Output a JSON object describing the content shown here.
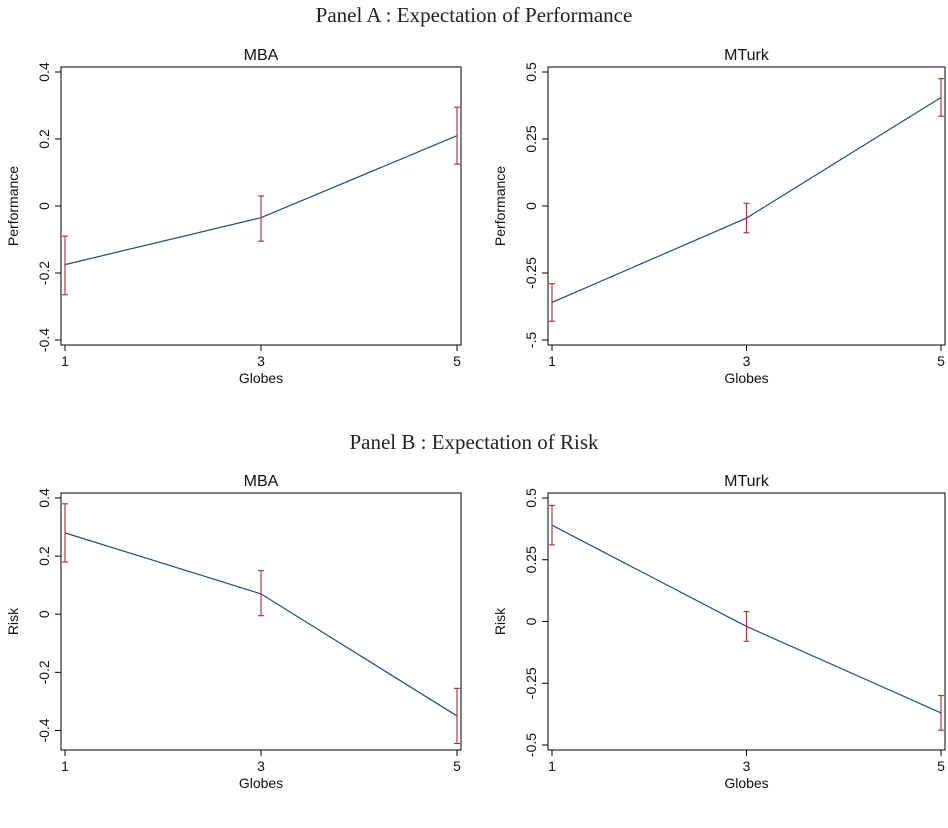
{
  "panels": [
    {
      "title": "Panel A : Expectation of Performance"
    },
    {
      "title": "Panel B : Expectation of Risk"
    }
  ],
  "colors": {
    "line": "#1f4e79",
    "error_bar": "#a03030",
    "axis": "#000000"
  },
  "chart_data": [
    {
      "type": "line",
      "title": "MBA",
      "xlabel": "Globes",
      "ylabel": "Performance",
      "x": [
        1,
        3,
        5
      ],
      "xticks": [
        "1",
        "3",
        "5"
      ],
      "xlim": [
        1,
        5
      ],
      "ylim": [
        -0.4,
        0.4
      ],
      "yticks": [
        -0.4,
        -0.2,
        0,
        0.2,
        0.4
      ],
      "ytick_labels": [
        "-0.4",
        "-0.2",
        "0",
        "0.2",
        "0.4"
      ],
      "values": [
        -0.175,
        -0.035,
        0.21
      ],
      "error_low": [
        -0.265,
        -0.105,
        0.125
      ],
      "error_high": [
        -0.09,
        0.03,
        0.295
      ],
      "grid": false
    },
    {
      "type": "line",
      "title": "MTurk",
      "xlabel": "Globes",
      "ylabel": "Performance",
      "x": [
        1,
        3,
        5
      ],
      "xticks": [
        "1",
        "3",
        "5"
      ],
      "xlim": [
        1,
        5
      ],
      "ylim": [
        -0.5,
        0.5
      ],
      "yticks": [
        -0.5,
        -0.25,
        0,
        0.25,
        0.5
      ],
      "ytick_labels": [
        "-.5",
        "-0.25",
        "0",
        "0.25",
        "0.5"
      ],
      "values": [
        -0.36,
        -0.045,
        0.405
      ],
      "error_low": [
        -0.43,
        -0.1,
        0.335
      ],
      "error_high": [
        -0.29,
        0.01,
        0.475
      ],
      "grid": false
    },
    {
      "type": "line",
      "title": "MBA",
      "xlabel": "Globes",
      "ylabel": "Risk",
      "x": [
        1,
        3,
        5
      ],
      "xticks": [
        "1",
        "3",
        "5"
      ],
      "xlim": [
        1,
        5
      ],
      "ylim": [
        -0.45,
        0.4
      ],
      "yticks": [
        -0.4,
        -0.2,
        0,
        0.2,
        0.4
      ],
      "ytick_labels": [
        "-0.4",
        "-0.2",
        "0",
        "0.2",
        "0.4"
      ],
      "values": [
        0.28,
        0.07,
        -0.35
      ],
      "error_low": [
        0.18,
        -0.005,
        -0.445
      ],
      "error_high": [
        0.38,
        0.15,
        -0.255
      ],
      "grid": false
    },
    {
      "type": "line",
      "title": "MTurk",
      "xlabel": "Globes",
      "ylabel": "Risk",
      "x": [
        1,
        3,
        5
      ],
      "xticks": [
        "1",
        "3",
        "5"
      ],
      "xlim": [
        1,
        5
      ],
      "ylim": [
        -0.5,
        0.5
      ],
      "yticks": [
        -0.5,
        -0.25,
        0,
        0.25,
        0.5
      ],
      "ytick_labels": [
        "-0.5",
        "-0.25",
        "0",
        "0.25",
        "0.5"
      ],
      "values": [
        0.39,
        -0.02,
        -0.37
      ],
      "error_low": [
        0.31,
        -0.08,
        -0.44
      ],
      "error_high": [
        0.47,
        0.04,
        -0.3
      ],
      "grid": false
    }
  ]
}
